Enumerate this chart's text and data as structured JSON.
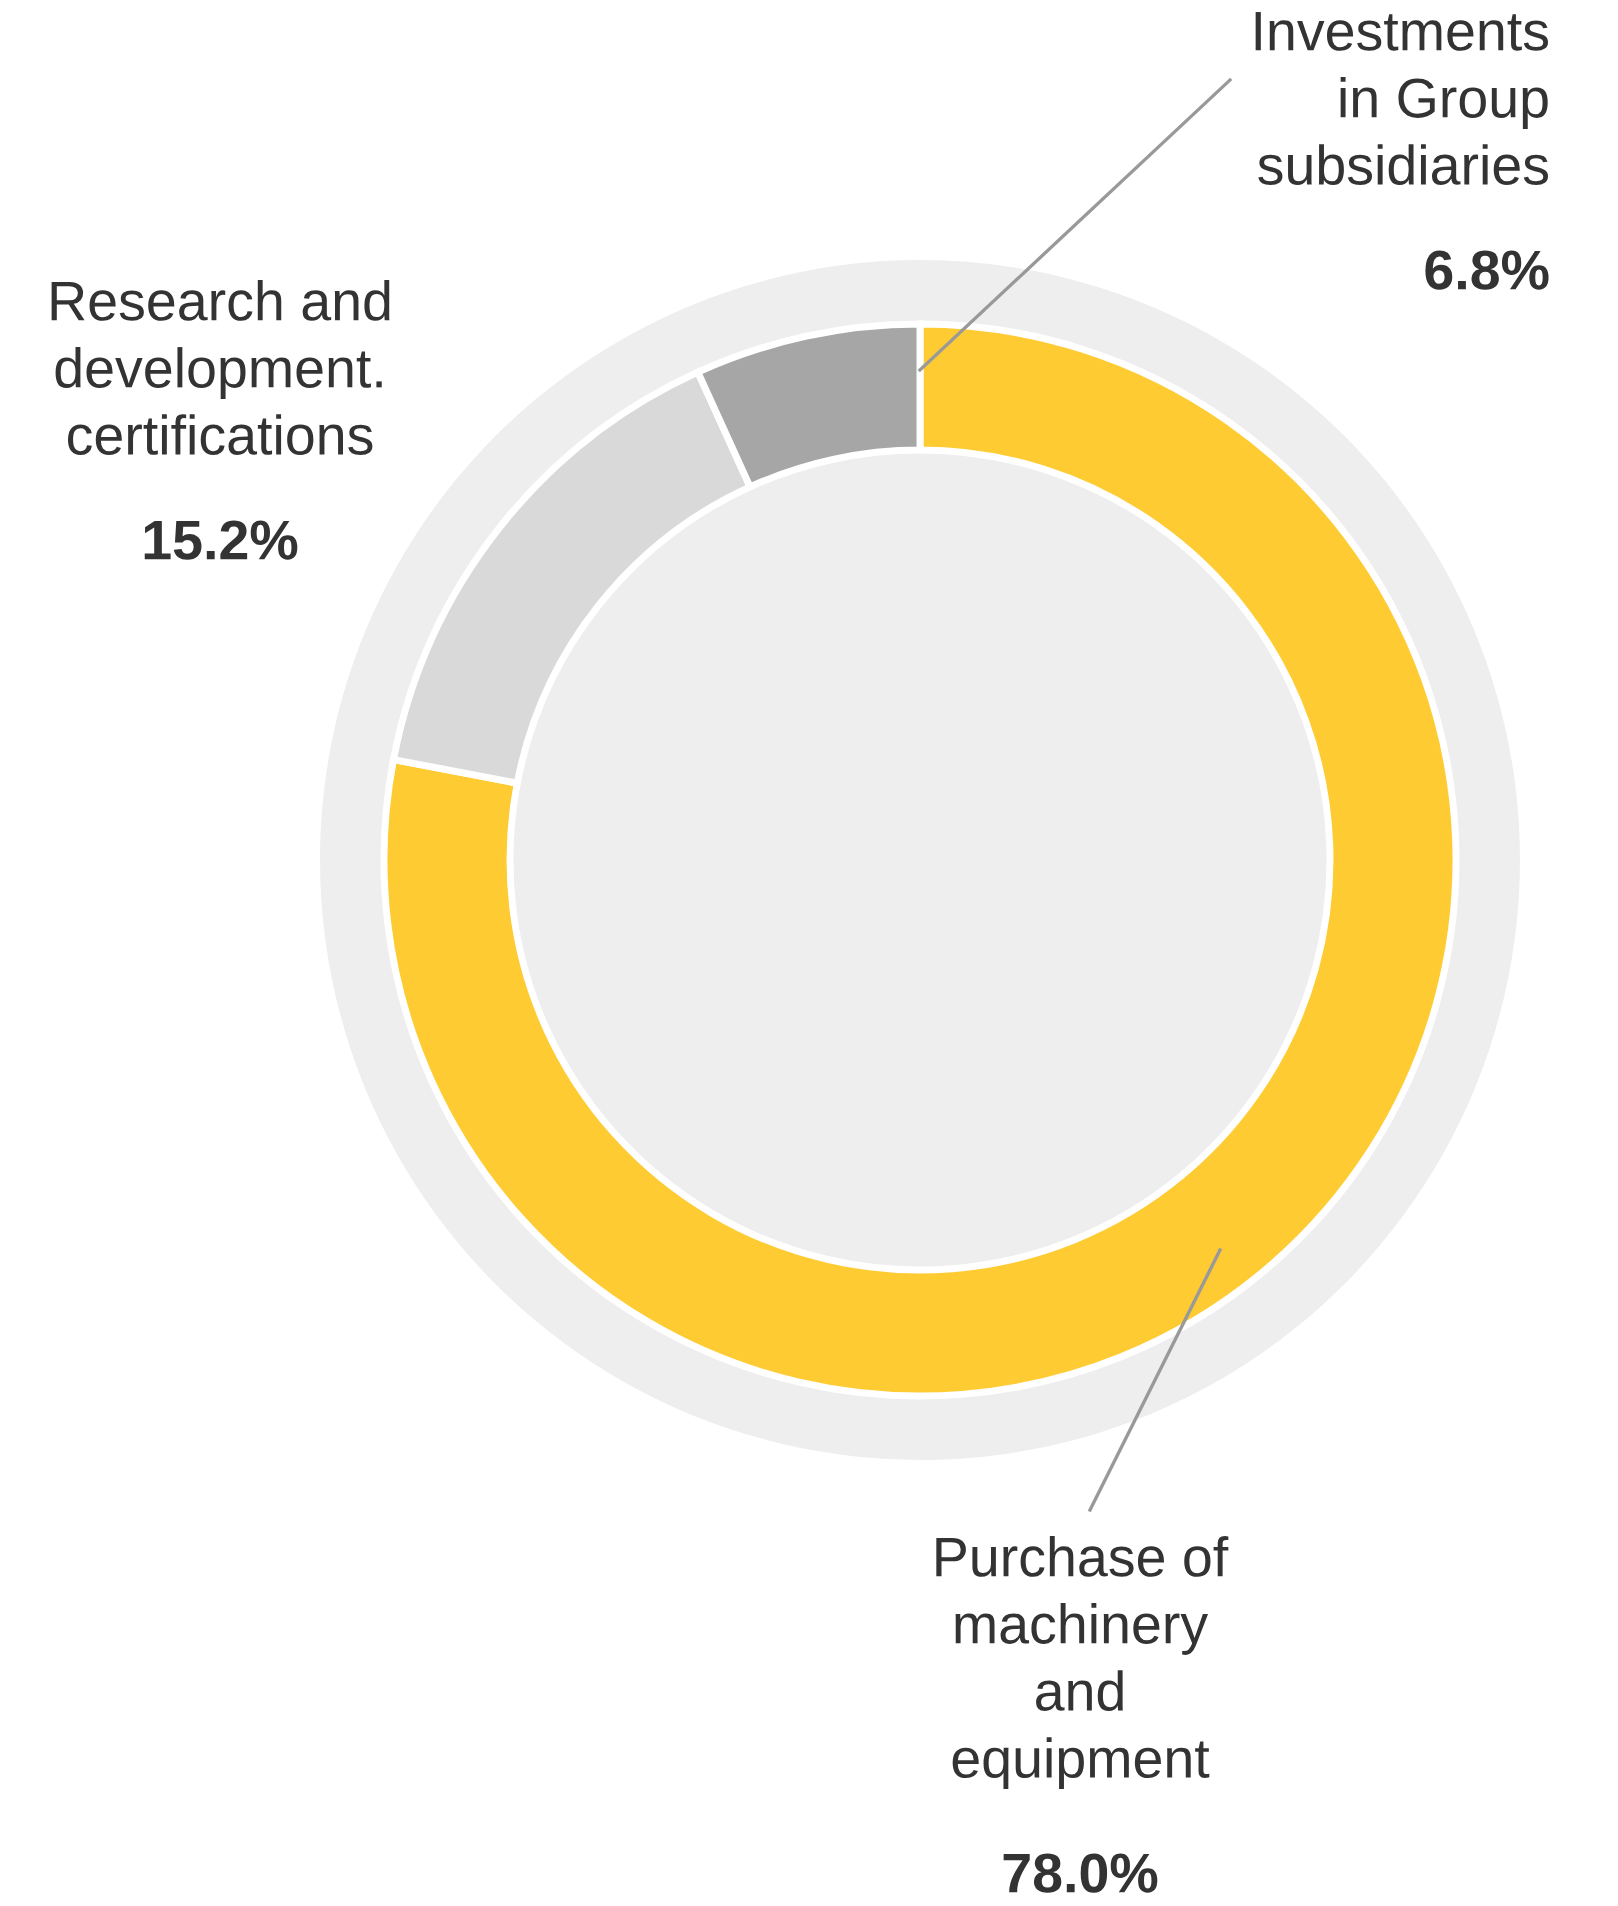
{
  "chart_data": {
    "type": "donut",
    "categories": [
      "Purchase of\nmachinery\nand\nequipment",
      "Research and\ndevelopment.\ncertifications",
      "Investments\nin Group\nsubsidiaries"
    ],
    "values": [
      78.0,
      15.2,
      6.8
    ],
    "colors": [
      "#fecb32",
      "#d9d9d9",
      "#a6a6a6"
    ],
    "value_labels": [
      "78.0%",
      "15.2%",
      "6.8%"
    ]
  }
}
